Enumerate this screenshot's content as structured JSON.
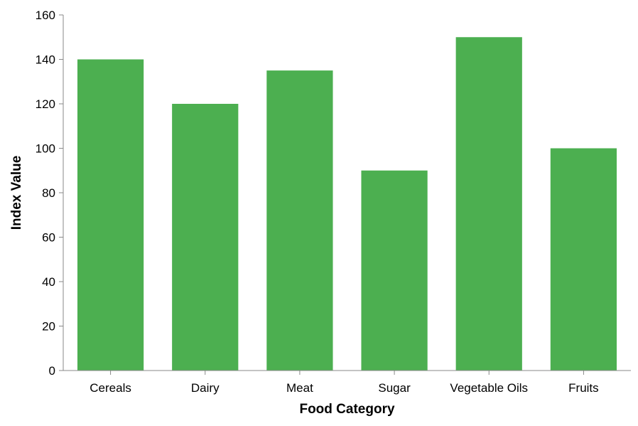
{
  "chart_data": {
    "type": "bar",
    "title": "",
    "xlabel": "Food Category",
    "ylabel": "Index Value",
    "categories": [
      "Cereals",
      "Dairy",
      "Meat",
      "Sugar",
      "Vegetable Oils",
      "Fruits"
    ],
    "values": [
      140,
      120,
      135,
      90,
      150,
      100
    ],
    "ylim": [
      0,
      160
    ],
    "yticks": [
      0,
      20,
      40,
      60,
      80,
      100,
      120,
      140,
      160
    ],
    "grid": false,
    "bar_color": "#4caf50",
    "axis_color": "#888888"
  }
}
